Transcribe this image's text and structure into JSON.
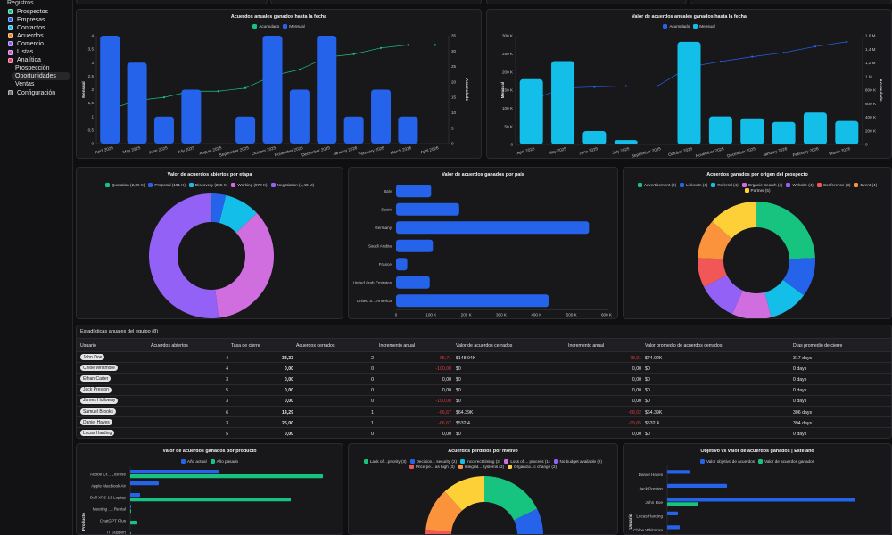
{
  "sidebar": {
    "section": "Registros",
    "items": [
      {
        "label": "Prospectos",
        "color": "#16c47f"
      },
      {
        "label": "Empresas",
        "color": "#2563eb"
      },
      {
        "label": "Contactos",
        "color": "#13bfe8"
      },
      {
        "label": "Acuerdos",
        "color": "#f08a24"
      },
      {
        "label": "Comercio",
        "color": "#8b5cf6"
      },
      {
        "label": "Listas",
        "color": "#c45ee0"
      },
      {
        "label": "Analítica",
        "color": "#e0457b"
      }
    ],
    "analytics_sub": [
      {
        "label": "Prospección"
      },
      {
        "label": "Oportunidades",
        "active": true
      },
      {
        "label": "Ventas"
      }
    ],
    "settings": {
      "label": "Configuración",
      "color": "#71717a"
    }
  },
  "chart_data": [
    {
      "type": "bar+line",
      "title": "Acuerdos anuales ganados hasta la fecha",
      "legend": [
        {
          "name": "Acumulado",
          "color": "#16c47f"
        },
        {
          "name": "Mensual",
          "color": "#2563eb"
        }
      ],
      "categories": [
        "April 2025",
        "May 2025",
        "June 2025",
        "July 2025",
        "August 2025",
        "September 2025",
        "October 2025",
        "November 2025",
        "December 2025",
        "January 2026",
        "February 2026",
        "March 2026",
        "April 2026"
      ],
      "bars": {
        "name": "Mensual",
        "color": "#2563eb",
        "values": [
          4,
          3,
          1,
          2,
          0,
          1,
          4,
          2,
          4,
          1,
          2,
          1,
          0
        ]
      },
      "line": {
        "name": "Acumulado",
        "color": "#16c47f",
        "values": [
          11,
          14,
          15,
          17,
          17,
          18,
          22,
          24,
          28,
          29,
          31,
          32,
          32
        ]
      },
      "ylabel": "Mensual",
      "y2label": "Acumulado",
      "ylim": [
        0,
        4
      ],
      "y2lim": [
        0,
        35
      ],
      "yticks": [
        "0",
        "0,5",
        "1",
        "1,5",
        "2",
        "2,5",
        "3",
        "3,5",
        "4"
      ],
      "y2ticks": [
        "0",
        "5",
        "10",
        "15",
        "20",
        "25",
        "30",
        "35"
      ]
    },
    {
      "type": "bar+line",
      "title": "Valor de acuerdos anuales ganados hasta la fecha",
      "legend": [
        {
          "name": "Acumulado",
          "color": "#2563eb"
        },
        {
          "name": "Mensual",
          "color": "#13bfe8"
        }
      ],
      "categories": [
        "April 2025",
        "May 2025",
        "June 2025",
        "July 2025",
        "September 2025",
        "October 2025",
        "November 2025",
        "December 2025",
        "January 2026",
        "February 2026",
        "March 2026"
      ],
      "bars": {
        "name": "Mensual",
        "color": "#13bfe8",
        "values": [
          180000,
          230000,
          37000,
          12000,
          0,
          283000,
          77000,
          72000,
          62000,
          88000,
          65000
        ]
      },
      "line": {
        "name": "Acumulado",
        "color": "#2563eb",
        "values": [
          650000,
          830000,
          845000,
          860000,
          860000,
          1140000,
          1220000,
          1290000,
          1350000,
          1440000,
          1510000
        ]
      },
      "ylabel": "Mensual",
      "y2label": "Acumulado",
      "ylim": [
        0,
        300000
      ],
      "y2lim": [
        0,
        1600000
      ],
      "yticks": [
        "0",
        "50 K",
        "100 K",
        "150 K",
        "200 K",
        "250 K",
        "300 K"
      ],
      "y2ticks": [
        "0",
        "200 K",
        "400 K",
        "600 K",
        "800 K",
        "1 M",
        "1,2 M",
        "1,4 M",
        "1,6 M"
      ]
    },
    {
      "type": "pie",
      "donut": true,
      "title": "Valor de acuerdos abiertos por etapa",
      "slices": [
        {
          "label": "Quotation (2,36 K)",
          "value": 2360,
          "color": "#16c47f"
        },
        {
          "label": "Proposal (101 K)",
          "value": 101000,
          "color": "#2563eb"
        },
        {
          "label": "Discovery (255 K)",
          "value": 255000,
          "color": "#13bfe8"
        },
        {
          "label": "Working (970 K)",
          "value": 970000,
          "color": "#d06ee0"
        },
        {
          "label": "Negotiation (1,43 M)",
          "value": 1430000,
          "color": "#9361f6"
        }
      ]
    },
    {
      "type": "bar",
      "orientation": "horizontal",
      "title": "Valor de acuerdos ganados por país",
      "categories": [
        "Italy",
        "Spain",
        "Germany",
        "Saudi Arabia",
        "France",
        "United Arab Emirates",
        "United S... America"
      ],
      "series": [
        {
          "color": "#2563eb",
          "values": [
            100000,
            180000,
            550000,
            105000,
            32000,
            96000,
            435000
          ]
        }
      ],
      "xlim": [
        0,
        600000
      ],
      "xticks": [
        "0",
        "100 K",
        "200 K",
        "300 K",
        "400 K",
        "500 K",
        "600 K"
      ]
    },
    {
      "type": "pie",
      "donut": true,
      "title": "Acuerdos ganados por origen del prospecto",
      "slices": [
        {
          "label": "Advertisement (9)",
          "value": 9,
          "color": "#16c47f"
        },
        {
          "label": "LinkedIn (4)",
          "value": 4,
          "color": "#2563eb"
        },
        {
          "label": "Referral (4)",
          "value": 4,
          "color": "#13bfe8"
        },
        {
          "label": "Organic Search (4)",
          "value": 4,
          "color": "#d06ee0"
        },
        {
          "label": "Website (4)",
          "value": 4,
          "color": "#9361f6"
        },
        {
          "label": "Conference (3)",
          "value": 3,
          "color": "#f25757"
        },
        {
          "label": "Event (4)",
          "value": 4,
          "color": "#fb923c"
        },
        {
          "label": "Partner (5)",
          "value": 5,
          "color": "#fdd037"
        }
      ]
    },
    {
      "type": "bar",
      "orientation": "horizontal",
      "title": "Valor de acuerdos ganados por producto",
      "ylabel": "Producto",
      "categories": [
        "Adobe Cr... License",
        "Apple MacBook Air",
        "Dell XPS 13 Laptop",
        "Meeting ...t Rental",
        "ChatGPT Plus",
        "IT Support"
      ],
      "series": [
        {
          "name": "Año actual",
          "color": "#2563eb",
          "values": [
            100,
            32,
            11,
            1,
            0,
            0
          ]
        },
        {
          "name": "Año pasado",
          "color": "#16c47f",
          "values": [
            216,
            0,
            180,
            1,
            8,
            1
          ]
        }
      ]
    },
    {
      "type": "pie",
      "donut": true,
      "title": "Acuerdos perdidos por motivo",
      "slices": [
        {
          "label": "Lack of ...priority (3)",
          "value": 3,
          "color": "#16c47f"
        },
        {
          "label": "Decision... security (2)",
          "value": 2,
          "color": "#2563eb"
        },
        {
          "label": "Incorrect timing (2)",
          "value": 2,
          "color": "#13bfe8"
        },
        {
          "label": "Loss of ... process (1)",
          "value": 1,
          "color": "#d06ee0"
        },
        {
          "label": "No budget available (2)",
          "value": 2,
          "color": "#9361f6"
        },
        {
          "label": "Price pe... as high (3)",
          "value": 3,
          "color": "#f25757"
        },
        {
          "label": "Integrat... systems (2)",
          "value": 2,
          "color": "#fb923c"
        },
        {
          "label": "Organiza...c change (2)",
          "value": 2,
          "color": "#fdd037"
        }
      ]
    },
    {
      "type": "bar",
      "orientation": "horizontal",
      "title": "Objetivo vs valor de acuerdos ganados | Este año",
      "ylabel": "Usuario",
      "categories": [
        "Daniel Hayes",
        "Jack Preston",
        "John Doe",
        "Lucas Harding",
        "Chloe Whitmore"
      ],
      "series": [
        {
          "name": "Valor objetivo de acuerdos",
          "color": "#2563eb",
          "values": [
            25,
            67,
            211,
            12,
            14
          ]
        },
        {
          "name": "Valor de acuerdos ganados",
          "color": "#16c47f",
          "values": [
            0,
            0,
            35,
            0,
            0
          ]
        }
      ]
    }
  ],
  "team_table": {
    "title": "Estadísticas anuales del equipo (8)",
    "columns": [
      "Usuario",
      "Acuerdos abiertos",
      "Tasa de cierre",
      "Acuerdos cerrados",
      "Incremento anual",
      "Valor de acuerdos cerrados",
      "Incremento anual",
      "Valor promedio de acuerdos cerrados",
      "Días promedio de cierre"
    ],
    "rows": [
      [
        "John Doe",
        "4",
        "33,33",
        "2",
        "-65,71",
        "$148.04K",
        "-78,91",
        "$74.02K",
        "317 days"
      ],
      [
        "Chloe Whitmore",
        "4",
        "0,00",
        "0",
        "-100,00",
        "$0",
        "0,00",
        "$0",
        "0 days"
      ],
      [
        "Ethan Carter",
        "3",
        "0,00",
        "0",
        "0,00",
        "$0",
        "0,00",
        "$0",
        "0 days"
      ],
      [
        "Jack Preston",
        "5",
        "0,00",
        "0",
        "0,00",
        "$0",
        "0,00",
        "$0",
        "0 days"
      ],
      [
        "James Holloway",
        "3",
        "0,00",
        "0",
        "-100,00",
        "$0",
        "0,00",
        "$0",
        "0 days"
      ],
      [
        "Samuel Brooks",
        "6",
        "14,29",
        "1",
        "-66,67",
        "$64.39K",
        "-68,02",
        "$64.39K",
        "306 days"
      ],
      [
        "Daniel Hayes",
        "3",
        "25,00",
        "1",
        "-66,67",
        "$532.4",
        "-99,65",
        "$532.4",
        "394 days"
      ],
      [
        "Lucas Harding",
        "5",
        "0,00",
        "0",
        "0,00",
        "$0",
        "0,00",
        "$0",
        "0 days"
      ]
    ]
  }
}
